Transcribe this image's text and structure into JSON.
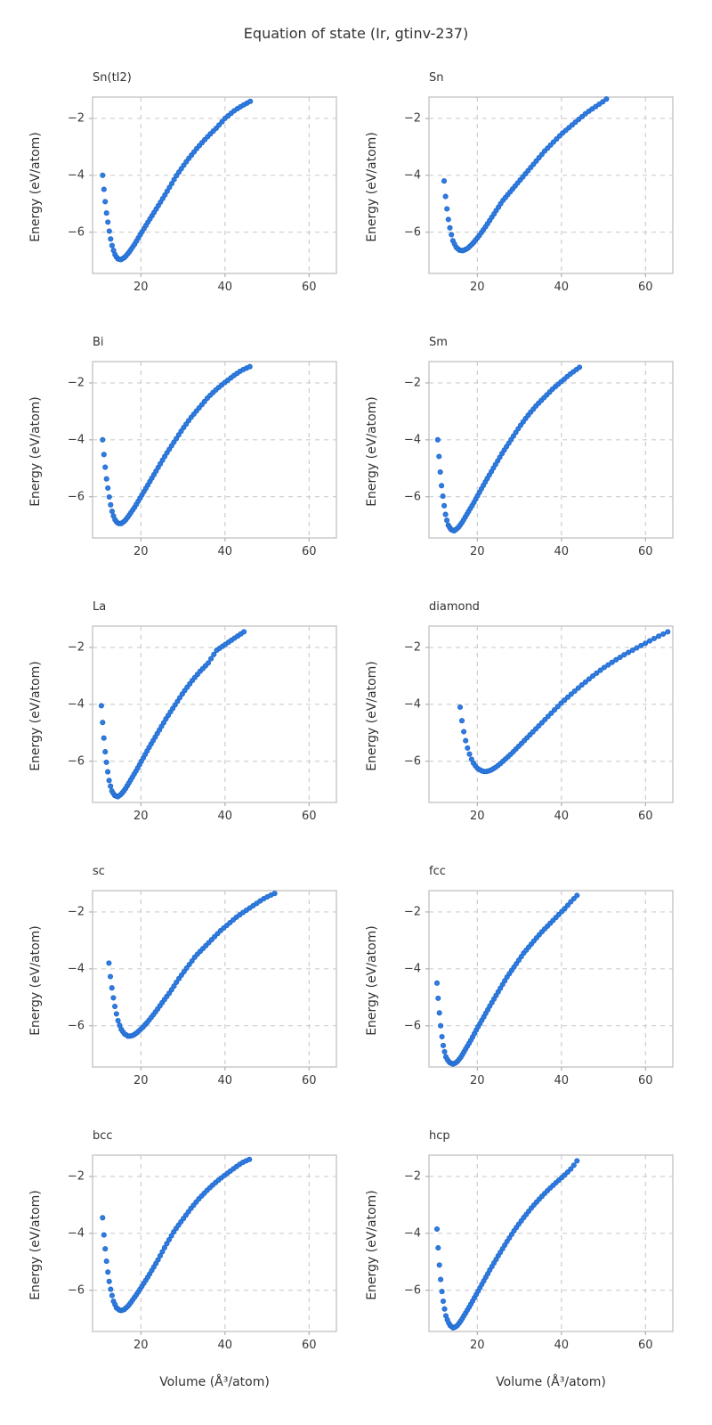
{
  "figure": {
    "title": "Equation of state (Ir, gtinv-237)"
  },
  "chart_data": {
    "type": "scatter",
    "title": "Equation of state (Ir, gtinv-237)",
    "xlabel": "Volume (Å³/atom)",
    "ylabel": "Energy (eV/atom)",
    "xlim": [
      8.5,
      66.5
    ],
    "ylim": [
      -7.45,
      -1.25
    ],
    "xticks": [
      20,
      40,
      60
    ],
    "yticks": [
      -2,
      -4,
      -6
    ],
    "xticklabels": [
      "20",
      "40",
      "60"
    ],
    "yticklabels": [
      "−2",
      "−4",
      "−6"
    ],
    "grid": "dashed",
    "legend": "none",
    "marker_color": "#2e7ce0",
    "marker_edge_color": "#1f65c8",
    "subplots": [
      {
        "label": "Sn(tI2)",
        "points": [
          [
            10.9,
            -4.0
          ],
          [
            11.3,
            -4.65
          ],
          [
            11.8,
            -5.3
          ],
          [
            12.4,
            -5.9
          ],
          [
            13.0,
            -6.4
          ],
          [
            13.7,
            -6.75
          ],
          [
            14.4,
            -6.93
          ],
          [
            15.2,
            -6.97
          ],
          [
            16.2,
            -6.88
          ],
          [
            17.3,
            -6.68
          ],
          [
            18.6,
            -6.4
          ],
          [
            20,
            -6.05
          ],
          [
            22,
            -5.57
          ],
          [
            24,
            -5.1
          ],
          [
            26,
            -4.62
          ],
          [
            28.5,
            -4.0
          ],
          [
            31,
            -3.48
          ],
          [
            33.5,
            -3.02
          ],
          [
            36,
            -2.62
          ],
          [
            38,
            -2.33
          ],
          [
            40,
            -2.0
          ],
          [
            42,
            -1.75
          ],
          [
            44,
            -1.56
          ],
          [
            46,
            -1.4
          ]
        ]
      },
      {
        "label": "Sn",
        "points": [
          [
            12.1,
            -4.2
          ],
          [
            12.5,
            -4.85
          ],
          [
            13.0,
            -5.45
          ],
          [
            13.6,
            -5.95
          ],
          [
            14.2,
            -6.3
          ],
          [
            14.9,
            -6.52
          ],
          [
            15.7,
            -6.63
          ],
          [
            16.6,
            -6.65
          ],
          [
            17.7,
            -6.57
          ],
          [
            18.9,
            -6.4
          ],
          [
            20.3,
            -6.15
          ],
          [
            22,
            -5.8
          ],
          [
            24,
            -5.35
          ],
          [
            26,
            -4.9
          ],
          [
            28,
            -4.55
          ],
          [
            30,
            -4.2
          ],
          [
            32,
            -3.85
          ],
          [
            34,
            -3.5
          ],
          [
            36,
            -3.15
          ],
          [
            38,
            -2.85
          ],
          [
            40,
            -2.55
          ],
          [
            42,
            -2.3
          ],
          [
            44,
            -2.05
          ],
          [
            46,
            -1.8
          ],
          [
            48,
            -1.6
          ],
          [
            50,
            -1.4
          ],
          [
            50.7,
            -1.32
          ]
        ]
      },
      {
        "label": "Bi",
        "points": [
          [
            10.9,
            -4.0
          ],
          [
            11.3,
            -4.68
          ],
          [
            11.8,
            -5.35
          ],
          [
            12.4,
            -5.95
          ],
          [
            13.0,
            -6.45
          ],
          [
            13.7,
            -6.78
          ],
          [
            14.4,
            -6.93
          ],
          [
            15.2,
            -6.95
          ],
          [
            16.2,
            -6.85
          ],
          [
            17.3,
            -6.63
          ],
          [
            18.6,
            -6.35
          ],
          [
            20,
            -6.0
          ],
          [
            22,
            -5.5
          ],
          [
            24,
            -5.0
          ],
          [
            26,
            -4.5
          ],
          [
            28,
            -4.05
          ],
          [
            30,
            -3.6
          ],
          [
            32,
            -3.2
          ],
          [
            34,
            -2.85
          ],
          [
            36,
            -2.5
          ],
          [
            38,
            -2.22
          ],
          [
            40,
            -1.98
          ],
          [
            42,
            -1.75
          ],
          [
            44,
            -1.55
          ],
          [
            45.9,
            -1.43
          ]
        ]
      },
      {
        "label": "Sm",
        "points": [
          [
            10.6,
            -4.0
          ],
          [
            11.0,
            -4.8
          ],
          [
            11.4,
            -5.5
          ],
          [
            11.9,
            -6.1
          ],
          [
            12.4,
            -6.6
          ],
          [
            13.0,
            -6.98
          ],
          [
            13.7,
            -7.15
          ],
          [
            14.5,
            -7.2
          ],
          [
            15.4,
            -7.1
          ],
          [
            16.4,
            -6.9
          ],
          [
            17.6,
            -6.6
          ],
          [
            19,
            -6.25
          ],
          [
            20.5,
            -5.85
          ],
          [
            22,
            -5.45
          ],
          [
            24,
            -4.95
          ],
          [
            26,
            -4.45
          ],
          [
            28,
            -4.0
          ],
          [
            30,
            -3.55
          ],
          [
            32,
            -3.15
          ],
          [
            34,
            -2.8
          ],
          [
            36,
            -2.5
          ],
          [
            38,
            -2.2
          ],
          [
            40,
            -1.95
          ],
          [
            42,
            -1.7
          ],
          [
            44.3,
            -1.45
          ]
        ]
      },
      {
        "label": "La",
        "points": [
          [
            10.6,
            -4.05
          ],
          [
            11.0,
            -4.85
          ],
          [
            11.4,
            -5.55
          ],
          [
            11.9,
            -6.15
          ],
          [
            12.4,
            -6.65
          ],
          [
            13.0,
            -7.02
          ],
          [
            13.7,
            -7.2
          ],
          [
            14.5,
            -7.25
          ],
          [
            15.4,
            -7.15
          ],
          [
            16.4,
            -6.95
          ],
          [
            17.6,
            -6.65
          ],
          [
            19,
            -6.3
          ],
          [
            20.5,
            -5.9
          ],
          [
            22,
            -5.5
          ],
          [
            24,
            -5.0
          ],
          [
            26,
            -4.5
          ],
          [
            28,
            -4.05
          ],
          [
            30,
            -3.6
          ],
          [
            32,
            -3.2
          ],
          [
            34,
            -2.85
          ],
          [
            36,
            -2.55
          ],
          [
            38,
            -2.1
          ],
          [
            40,
            -1.9
          ],
          [
            42,
            -1.7
          ],
          [
            44.5,
            -1.45
          ]
        ]
      },
      {
        "label": "diamond",
        "points": [
          [
            15.9,
            -4.1
          ],
          [
            16.4,
            -4.65
          ],
          [
            17.0,
            -5.15
          ],
          [
            17.7,
            -5.55
          ],
          [
            18.4,
            -5.87
          ],
          [
            19.2,
            -6.1
          ],
          [
            20,
            -6.25
          ],
          [
            21,
            -6.34
          ],
          [
            21.9,
            -6.37
          ],
          [
            23,
            -6.33
          ],
          [
            24,
            -6.25
          ],
          [
            25.2,
            -6.12
          ],
          [
            26.5,
            -5.95
          ],
          [
            28,
            -5.75
          ],
          [
            30,
            -5.45
          ],
          [
            32,
            -5.15
          ],
          [
            34,
            -4.85
          ],
          [
            36,
            -4.55
          ],
          [
            38,
            -4.25
          ],
          [
            40,
            -3.95
          ],
          [
            42.5,
            -3.62
          ],
          [
            45,
            -3.3
          ],
          [
            47.5,
            -3.0
          ],
          [
            50,
            -2.72
          ],
          [
            52.5,
            -2.48
          ],
          [
            55,
            -2.25
          ],
          [
            57.5,
            -2.05
          ],
          [
            60,
            -1.85
          ],
          [
            62.5,
            -1.65
          ],
          [
            65.3,
            -1.45
          ]
        ]
      },
      {
        "label": "sc",
        "points": [
          [
            12.4,
            -3.8
          ],
          [
            12.8,
            -4.35
          ],
          [
            13.3,
            -4.9
          ],
          [
            13.9,
            -5.4
          ],
          [
            14.5,
            -5.8
          ],
          [
            15.2,
            -6.1
          ],
          [
            16,
            -6.28
          ],
          [
            17,
            -6.37
          ],
          [
            18,
            -6.35
          ],
          [
            19,
            -6.25
          ],
          [
            20.3,
            -6.08
          ],
          [
            21.7,
            -5.85
          ],
          [
            23.3,
            -5.55
          ],
          [
            25,
            -5.2
          ],
          [
            27,
            -4.8
          ],
          [
            29,
            -4.35
          ],
          [
            31,
            -3.95
          ],
          [
            33,
            -3.55
          ],
          [
            35,
            -3.25
          ],
          [
            37,
            -2.95
          ],
          [
            39,
            -2.65
          ],
          [
            41,
            -2.4
          ],
          [
            43,
            -2.15
          ],
          [
            45,
            -1.95
          ],
          [
            47,
            -1.75
          ],
          [
            49,
            -1.55
          ],
          [
            51,
            -1.4
          ],
          [
            51.8,
            -1.35
          ]
        ]
      },
      {
        "label": "fcc",
        "points": [
          [
            10.4,
            -4.5
          ],
          [
            10.75,
            -5.15
          ],
          [
            11.1,
            -5.75
          ],
          [
            11.5,
            -6.3
          ],
          [
            12.0,
            -6.8
          ],
          [
            12.6,
            -7.13
          ],
          [
            13.4,
            -7.3
          ],
          [
            14.3,
            -7.35
          ],
          [
            15.2,
            -7.27
          ],
          [
            16.2,
            -7.08
          ],
          [
            17.3,
            -6.8
          ],
          [
            18.5,
            -6.5
          ],
          [
            20,
            -6.08
          ],
          [
            21.5,
            -5.7
          ],
          [
            23,
            -5.3
          ],
          [
            25,
            -4.8
          ],
          [
            27,
            -4.3
          ],
          [
            29,
            -3.88
          ],
          [
            31,
            -3.45
          ],
          [
            33,
            -3.1
          ],
          [
            35,
            -2.75
          ],
          [
            37,
            -2.45
          ],
          [
            39,
            -2.15
          ],
          [
            41,
            -1.85
          ],
          [
            42.5,
            -1.6
          ],
          [
            43.7,
            -1.42
          ]
        ]
      },
      {
        "label": "bcc",
        "points": [
          [
            10.9,
            -3.45
          ],
          [
            11.3,
            -4.25
          ],
          [
            11.8,
            -4.95
          ],
          [
            12.3,
            -5.55
          ],
          [
            12.9,
            -6.05
          ],
          [
            13.5,
            -6.4
          ],
          [
            14.2,
            -6.62
          ],
          [
            15.1,
            -6.72
          ],
          [
            16,
            -6.68
          ],
          [
            17,
            -6.55
          ],
          [
            18,
            -6.35
          ],
          [
            19.2,
            -6.1
          ],
          [
            20.5,
            -5.8
          ],
          [
            22,
            -5.45
          ],
          [
            24,
            -4.95
          ],
          [
            26,
            -4.4
          ],
          [
            28,
            -3.9
          ],
          [
            30,
            -3.5
          ],
          [
            32,
            -3.1
          ],
          [
            34,
            -2.75
          ],
          [
            36,
            -2.45
          ],
          [
            38,
            -2.18
          ],
          [
            40,
            -1.95
          ],
          [
            42,
            -1.73
          ],
          [
            44,
            -1.52
          ],
          [
            45.8,
            -1.4
          ]
        ]
      },
      {
        "label": "hcp",
        "points": [
          [
            10.4,
            -3.85
          ],
          [
            10.75,
            -4.65
          ],
          [
            11.1,
            -5.35
          ],
          [
            11.5,
            -5.95
          ],
          [
            12.0,
            -6.5
          ],
          [
            12.6,
            -6.95
          ],
          [
            13.4,
            -7.22
          ],
          [
            14.3,
            -7.33
          ],
          [
            15.2,
            -7.25
          ],
          [
            16.2,
            -7.05
          ],
          [
            17.3,
            -6.78
          ],
          [
            18.5,
            -6.48
          ],
          [
            20,
            -6.08
          ],
          [
            21.5,
            -5.68
          ],
          [
            23,
            -5.28
          ],
          [
            25,
            -4.78
          ],
          [
            27,
            -4.3
          ],
          [
            29,
            -3.85
          ],
          [
            31,
            -3.45
          ],
          [
            33,
            -3.08
          ],
          [
            35,
            -2.75
          ],
          [
            37,
            -2.45
          ],
          [
            39,
            -2.18
          ],
          [
            41,
            -1.92
          ],
          [
            42.5,
            -1.7
          ],
          [
            43.7,
            -1.45
          ]
        ]
      }
    ]
  }
}
